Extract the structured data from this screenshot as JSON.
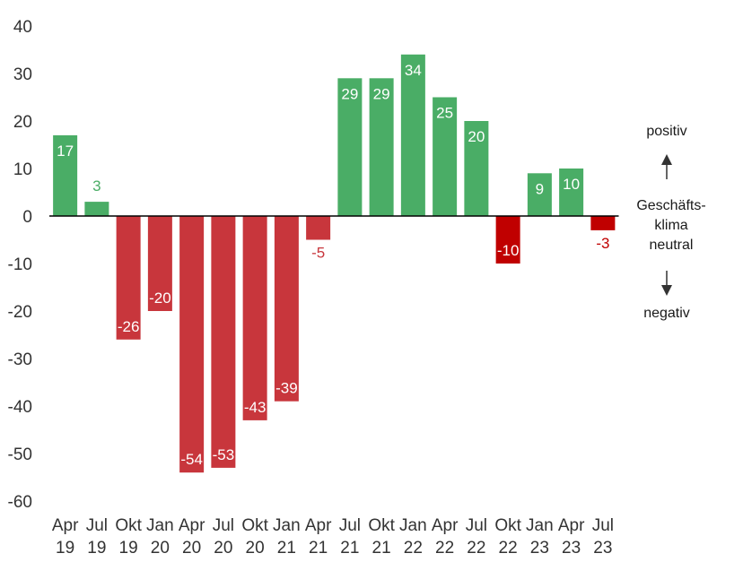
{
  "chart_data": {
    "type": "bar",
    "categories": [
      "Apr 19",
      "Jul 19",
      "Okt 19",
      "Jan 20",
      "Apr 20",
      "Jul 20",
      "Okt 20",
      "Jan 21",
      "Apr 21",
      "Jul 21",
      "Okt 21",
      "Jan 22",
      "Apr 22",
      "Jul 22",
      "Okt 22",
      "Jan 23",
      "Apr 23",
      "Jul 23"
    ],
    "values": [
      17,
      3,
      -26,
      -20,
      -54,
      -53,
      -43,
      -39,
      -5,
      29,
      29,
      34,
      25,
      20,
      -10,
      9,
      10,
      -3
    ],
    "value_labels": [
      "17",
      "3",
      "-26",
      "-20",
      "-54",
      "-53",
      "-43",
      "-39",
      "-5",
      "29",
      "29",
      "34",
      "25",
      "20",
      "-10",
      "9",
      "10",
      "-3"
    ],
    "ylim": [
      -60,
      40
    ],
    "yticks": [
      "40",
      "30",
      "20",
      "10",
      "0",
      "-10",
      "-20",
      "-30",
      "-40",
      "-50",
      "-60"
    ],
    "grid": false,
    "colors": {
      "positive": "#4aad66",
      "negative": "#c8363c",
      "highlight_negative": "#c00000",
      "axis": "#000000"
    },
    "highlight_categories": [
      "Okt 22",
      "Jul 23"
    ],
    "side_legend": {
      "top": "positiv",
      "middle_line1": "Geschäfts-",
      "middle_line2": "klima",
      "middle_line3": "neutral",
      "bottom": "negativ",
      "up_arrow_icon": "arrow-up-icon",
      "down_arrow_icon": "arrow-down-icon"
    }
  }
}
